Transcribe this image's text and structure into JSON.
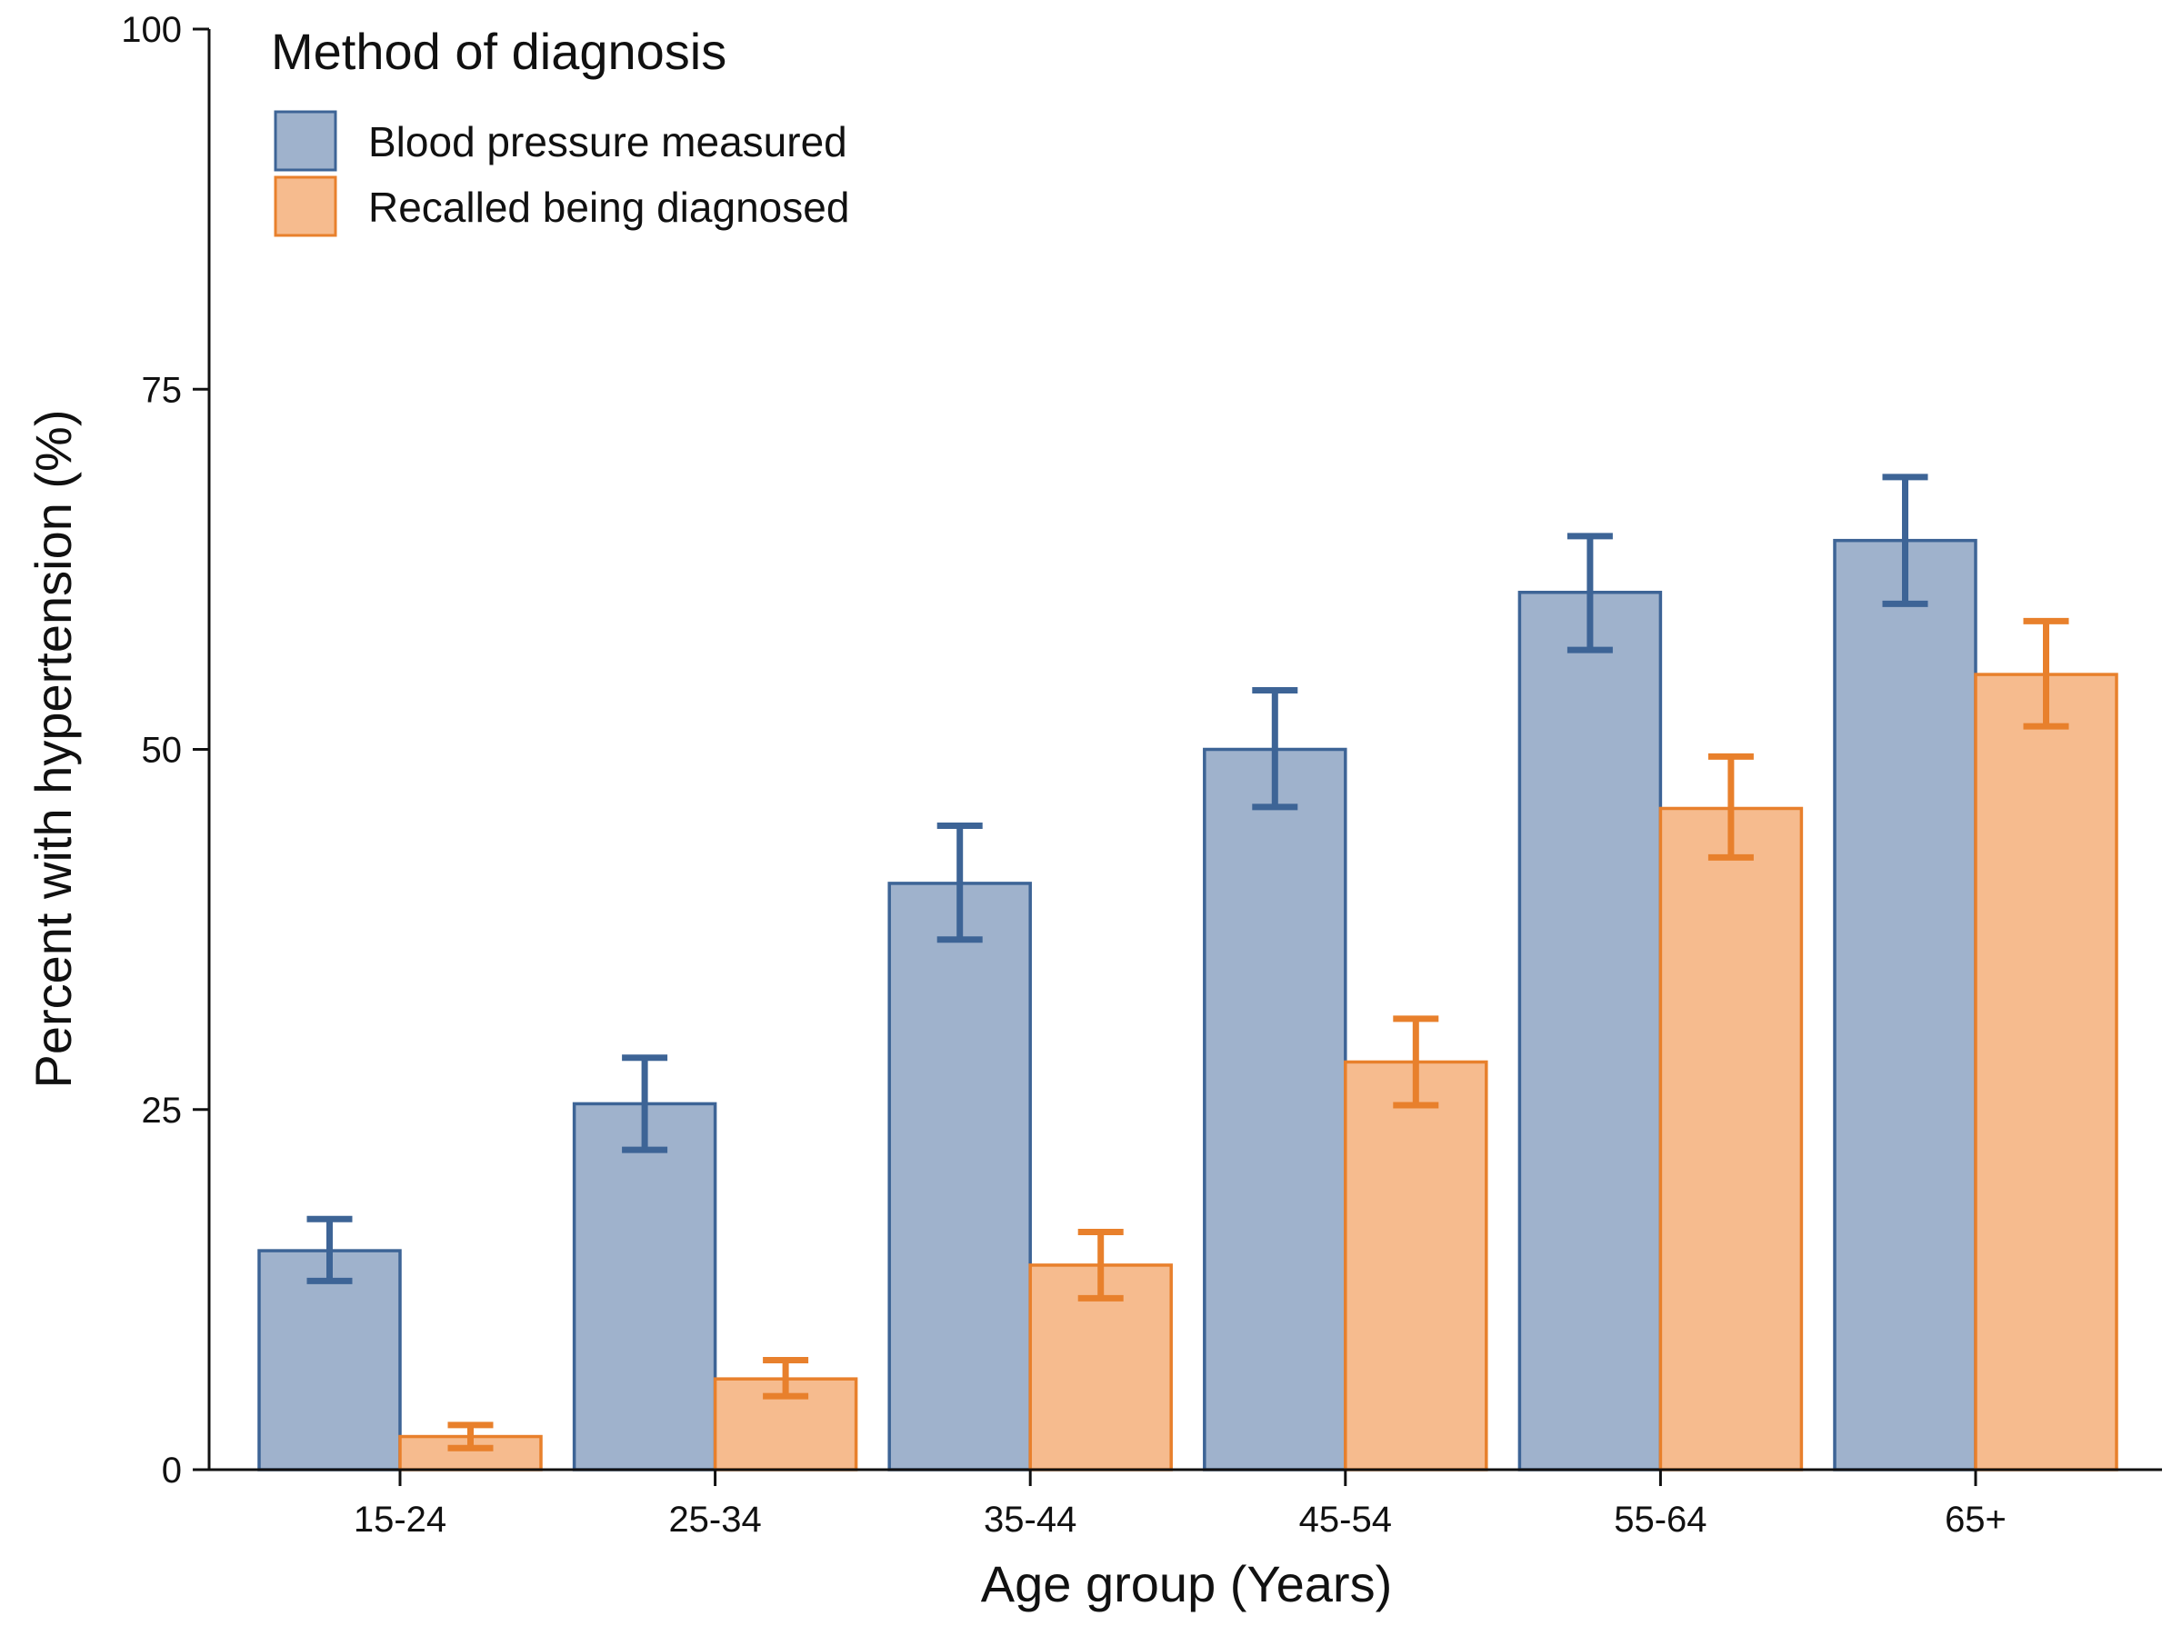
{
  "chart_data": {
    "type": "bar",
    "title": "",
    "xlabel": "Age group (Years)",
    "ylabel": "Percent with hypertension (%)",
    "ylim": [
      0,
      100
    ],
    "yticks": [
      "0",
      "25",
      "50",
      "75",
      "100"
    ],
    "categories": [
      "15-24",
      "25-34",
      "35-44",
      "45-54",
      "55-64",
      "65+"
    ],
    "legend": {
      "title": "Method of diagnosis",
      "placement": "top-left"
    },
    "series": [
      {
        "name": "Blood pressure measured",
        "fill": "#9fb2cc",
        "stroke": "#3d6496",
        "values": [
          15.2,
          25.4,
          40.7,
          50.0,
          60.9,
          64.5
        ],
        "ci_low": [
          13.1,
          22.2,
          36.8,
          46.0,
          56.9,
          60.1
        ],
        "ci_high": [
          17.4,
          28.6,
          44.7,
          54.1,
          64.8,
          68.9
        ]
      },
      {
        "name": "Recalled being diagnosed",
        "fill": "#f6bb8e",
        "stroke": "#e8802c",
        "values": [
          2.3,
          6.3,
          14.2,
          28.3,
          45.9,
          55.2
        ],
        "ci_low": [
          1.5,
          5.1,
          11.9,
          25.3,
          42.5,
          51.6
        ],
        "ci_high": [
          3.1,
          7.6,
          16.5,
          31.3,
          49.5,
          58.9
        ]
      }
    ],
    "grid": false
  }
}
